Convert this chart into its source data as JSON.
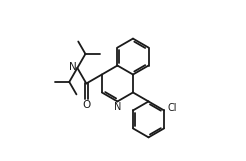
{
  "bg_color": "#ffffff",
  "line_color": "#1a1a1a",
  "lw": 1.3,
  "figsize": [
    2.46,
    1.61
  ],
  "dpi": 100,
  "xlim": [
    0,
    12
  ],
  "ylim": [
    0,
    8
  ]
}
